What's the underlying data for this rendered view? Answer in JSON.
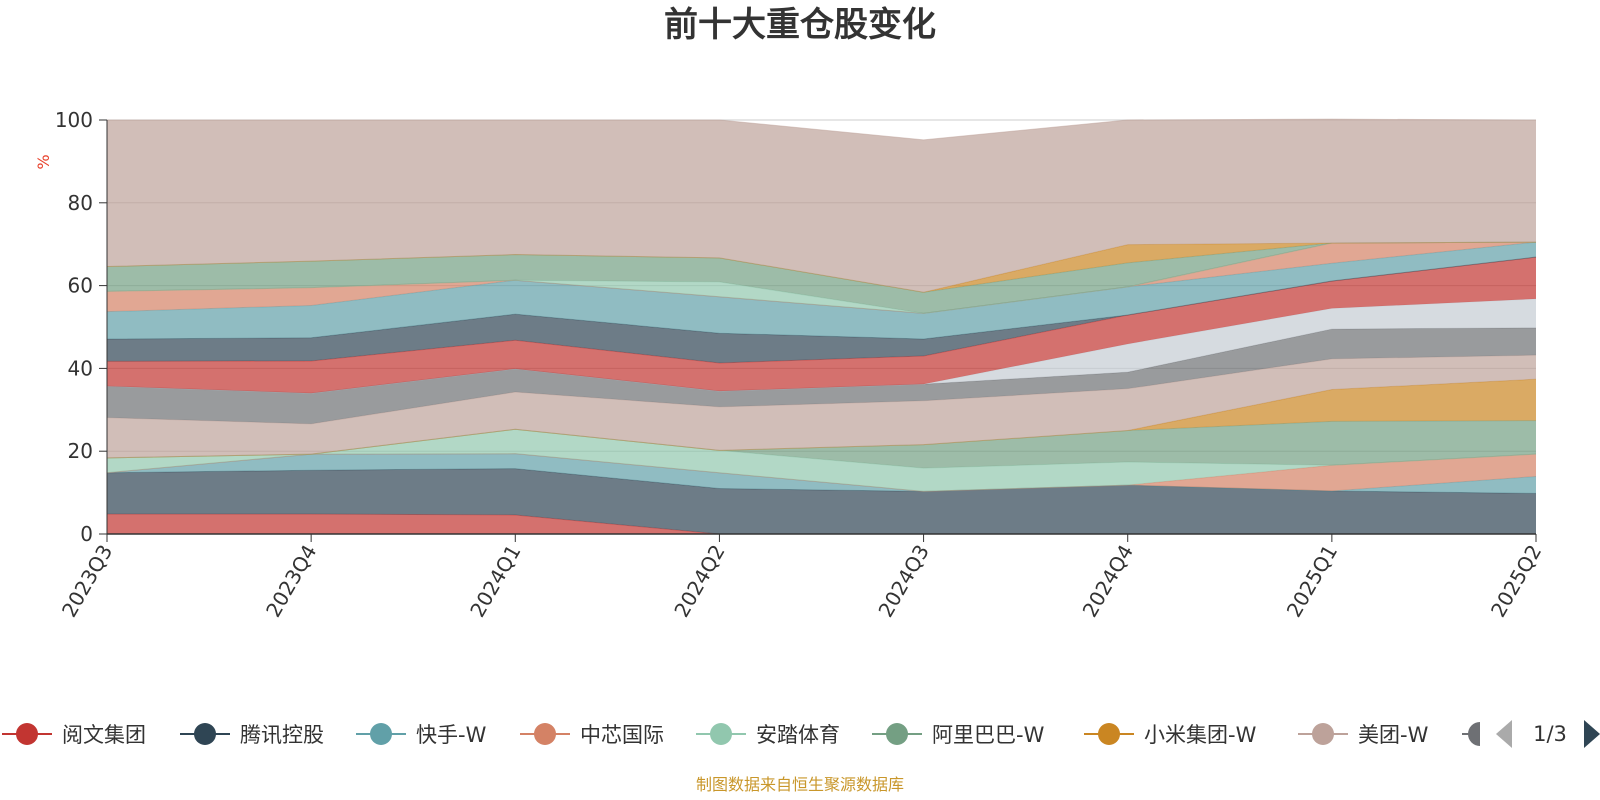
{
  "chart_data": {
    "type": "area",
    "stacked": true,
    "title": "前十大重仓股变化",
    "ylabel": "%",
    "ylim": [
      0,
      100
    ],
    "yticks": [
      "0",
      "20",
      "40",
      "60",
      "80",
      "100"
    ],
    "grid": true,
    "legend_position": "bottom",
    "categories": [
      "2023Q3",
      "2023Q4",
      "2024Q1",
      "2024Q2",
      "2024Q3",
      "2024Q4",
      "2025Q1",
      "2025Q2"
    ],
    "series": [
      {
        "name": "阅文集团",
        "color": "#c23531",
        "values": [
          4.8,
          4.8,
          4.6,
          0,
          0,
          0,
          0,
          0
        ]
      },
      {
        "name": "腾讯控股",
        "color": "#2f4554",
        "values": [
          10.0,
          10.6,
          11.2,
          11.0,
          10.3,
          11.8,
          10.4,
          9.8
        ]
      },
      {
        "name": "快手-W",
        "color": "#61a0a8",
        "values": [
          0,
          3.9,
          3.6,
          3.8,
          0,
          0,
          0,
          4.1
        ]
      },
      {
        "name": "中芯国际",
        "color": "#d48265",
        "values": [
          0,
          0,
          0,
          0,
          0,
          0,
          6.2,
          5.4
        ]
      },
      {
        "name": "安踏体育",
        "color": "#91c7ae",
        "values": [
          3.6,
          0,
          5.9,
          5.4,
          5.6,
          5.6,
          0,
          0
        ]
      },
      {
        "name": "阿里巴巴-W",
        "color": "#749f83",
        "values": [
          0,
          0,
          0,
          0,
          5.7,
          7.6,
          10.6,
          8.1
        ]
      },
      {
        "name": "小米集团-W",
        "color": "#ca8622",
        "values": [
          0,
          0,
          0,
          0,
          0,
          0,
          7.7,
          10.0
        ]
      },
      {
        "name": "美团-W",
        "color": "#bda29a",
        "values": [
          9.7,
          7.3,
          9.0,
          10.5,
          10.6,
          10.1,
          7.4,
          5.8
        ]
      },
      {
        "name": "",
        "color": "#6e7074",
        "values": [
          7.6,
          7.4,
          5.6,
          3.8,
          4.0,
          4.0,
          7.2,
          6.6
        ]
      },
      {
        "name": "",
        "color": "#c4ccd3",
        "values": [
          0,
          0,
          0,
          0,
          0,
          6.8,
          5.0,
          7.0
        ]
      },
      {
        "name": "",
        "color": "#c23531",
        "values": [
          6.0,
          7.8,
          6.9,
          6.8,
          6.8,
          7.0,
          6.6,
          10.1
        ]
      },
      {
        "name": "",
        "color": "#2f4554",
        "values": [
          5.4,
          5.6,
          6.3,
          7.2,
          4.1,
          0,
          0,
          0
        ]
      },
      {
        "name": "",
        "color": "#61a0a8",
        "values": [
          6.6,
          7.8,
          8.2,
          8.8,
          6.2,
          6.8,
          4.3,
          3.6
        ]
      },
      {
        "name": "",
        "color": "#d48265",
        "values": [
          4.9,
          4.3,
          0,
          0,
          0,
          0,
          4.9,
          0
        ]
      },
      {
        "name": "",
        "color": "#91c7ae",
        "values": [
          0,
          0,
          0,
          3.6,
          0,
          0,
          0,
          0
        ]
      },
      {
        "name": "",
        "color": "#749f83",
        "values": [
          6.0,
          6.4,
          6.2,
          5.8,
          5.1,
          5.8,
          0,
          0
        ]
      },
      {
        "name": "",
        "color": "#ca8622",
        "values": [
          0,
          0,
          0,
          0,
          0,
          4.4,
          0,
          0
        ]
      },
      {
        "name": "",
        "color": "#bda29a",
        "values": [
          35.4,
          34.1,
          32.5,
          33.3,
          36.8,
          30.1,
          29.9,
          29.5
        ]
      }
    ]
  },
  "legend": {
    "items": [
      {
        "name": "阅文集团",
        "color": "#c23531"
      },
      {
        "name": "腾讯控股",
        "color": "#2f4554"
      },
      {
        "name": "快手-W",
        "color": "#61a0a8"
      },
      {
        "name": "中芯国际",
        "color": "#d48265"
      },
      {
        "name": "安踏体育",
        "color": "#91c7ae"
      },
      {
        "name": "阿里巴巴-W",
        "color": "#749f83"
      },
      {
        "name": "小米集团-W",
        "color": "#ca8622"
      },
      {
        "name": "美团-W",
        "color": "#bda29a"
      }
    ],
    "page": "1/3"
  },
  "footer": "制图数据来自恒生聚源数据库"
}
